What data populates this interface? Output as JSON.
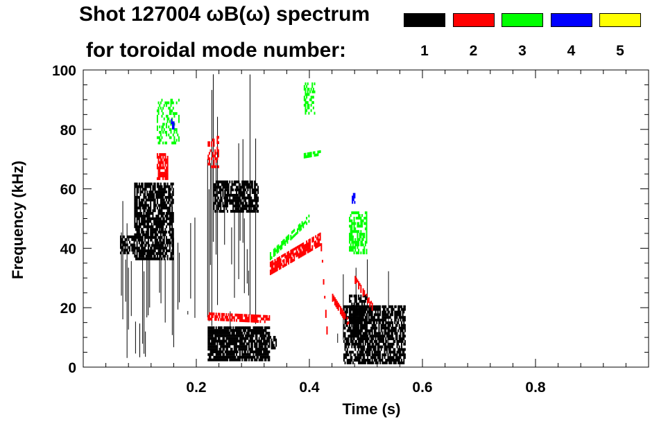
{
  "chart_data": {
    "type": "scatter",
    "title_line1": "Shot 127004 ωB(ω) spectrum",
    "title_line2": "for toroidal mode number:",
    "xlabel": "Time (s)",
    "ylabel": "Frequency (kHz)",
    "xlim": [
      0.0,
      1.0
    ],
    "ylim": [
      0,
      100
    ],
    "x_ticks": [
      0.2,
      0.4,
      0.6,
      0.8
    ],
    "x_tick_labels": [
      "0.2",
      "0.4",
      "0.6",
      "0.8"
    ],
    "y_ticks": [
      0,
      20,
      40,
      60,
      80,
      100
    ],
    "y_tick_labels": [
      "0",
      "20",
      "40",
      "60",
      "80",
      "100"
    ],
    "grid": false,
    "legend_position": "top-right",
    "legend": [
      {
        "mode": "1",
        "color": "#000000"
      },
      {
        "mode": "2",
        "color": "#ff0000"
      },
      {
        "mode": "3",
        "color": "#00ff00"
      },
      {
        "mode": "4",
        "color": "#0000ff"
      },
      {
        "mode": "5",
        "color": "#ffff00"
      }
    ],
    "regions": [
      {
        "mode": "1",
        "shape": "blob",
        "t": [
          0.09,
          0.16
        ],
        "f": [
          36,
          62
        ],
        "density": 0.75
      },
      {
        "mode": "1",
        "shape": "vlines",
        "t": [
          0.065,
          0.2
        ],
        "f": [
          3,
          60
        ],
        "density": 0.5
      },
      {
        "mode": "1",
        "shape": "blob",
        "t": [
          0.065,
          0.09
        ],
        "f": [
          38,
          44
        ],
        "density": 0.7
      },
      {
        "mode": "1",
        "shape": "blob",
        "t": [
          0.23,
          0.31
        ],
        "f": [
          52,
          62
        ],
        "density": 0.7
      },
      {
        "mode": "1",
        "shape": "vlines",
        "t": [
          0.215,
          0.31
        ],
        "f": [
          10,
          100
        ],
        "density": 0.45
      },
      {
        "mode": "1",
        "shape": "blob",
        "t": [
          0.22,
          0.33
        ],
        "f": [
          2,
          13
        ],
        "density": 0.85
      },
      {
        "mode": "1",
        "shape": "blob",
        "t": [
          0.33,
          0.34
        ],
        "f": [
          6,
          10
        ],
        "density": 0.6
      },
      {
        "mode": "1",
        "shape": "blob",
        "t": [
          0.46,
          0.57
        ],
        "f": [
          1,
          20
        ],
        "density": 0.7
      },
      {
        "mode": "1",
        "shape": "blob",
        "t": [
          0.47,
          0.5
        ],
        "f": [
          10,
          24
        ],
        "density": 0.7
      },
      {
        "mode": "1",
        "shape": "vlines",
        "t": [
          0.45,
          0.54
        ],
        "f": [
          0,
          40
        ],
        "density": 0.3
      },
      {
        "mode": "2",
        "shape": "blob",
        "t": [
          0.13,
          0.15
        ],
        "f": [
          63,
          72
        ],
        "density": 0.8
      },
      {
        "mode": "2",
        "shape": "band",
        "t": [
          0.22,
          0.33
        ],
        "f_start": 17,
        "f_end": 16,
        "width": 2.5,
        "density": 0.7
      },
      {
        "mode": "2",
        "shape": "band",
        "t": [
          0.33,
          0.42
        ],
        "f_start": 33,
        "f_end": 43,
        "width": 4,
        "density": 0.8
      },
      {
        "mode": "2",
        "shape": "band",
        "t": [
          0.42,
          0.43
        ],
        "f_start": 40,
        "f_end": 12,
        "width": 2,
        "density": 0.8
      },
      {
        "mode": "2",
        "shape": "band",
        "t": [
          0.44,
          0.47
        ],
        "f_start": 23,
        "f_end": 14,
        "width": 2,
        "density": 0.7
      },
      {
        "mode": "2",
        "shape": "band",
        "t": [
          0.48,
          0.51
        ],
        "f_start": 29,
        "f_end": 20,
        "width": 2,
        "density": 0.6
      },
      {
        "mode": "2",
        "shape": "blob",
        "t": [
          0.22,
          0.24
        ],
        "f": [
          67,
          77
        ],
        "density": 0.4
      },
      {
        "mode": "3",
        "shape": "blob",
        "t": [
          0.39,
          0.41
        ],
        "f": [
          85,
          95
        ],
        "density": 0.5
      },
      {
        "mode": "3",
        "shape": "band",
        "t": [
          0.39,
          0.42
        ],
        "f_start": 71,
        "f_end": 72,
        "width": 1.5,
        "density": 0.7
      },
      {
        "mode": "3",
        "shape": "band",
        "t": [
          0.33,
          0.4
        ],
        "f_start": 37,
        "f_end": 50,
        "width": 2,
        "density": 0.6
      },
      {
        "mode": "3",
        "shape": "blob",
        "t": [
          0.47,
          0.5
        ],
        "f": [
          38,
          52
        ],
        "density": 0.6
      },
      {
        "mode": "3",
        "shape": "blob",
        "t": [
          0.13,
          0.17
        ],
        "f": [
          75,
          90
        ],
        "density": 0.3
      },
      {
        "mode": "4",
        "shape": "blob",
        "t": [
          0.475,
          0.48
        ],
        "f": [
          55,
          58
        ],
        "density": 0.7
      },
      {
        "mode": "4",
        "shape": "blob",
        "t": [
          0.155,
          0.16
        ],
        "f": [
          80,
          83
        ],
        "density": 0.6
      }
    ]
  }
}
